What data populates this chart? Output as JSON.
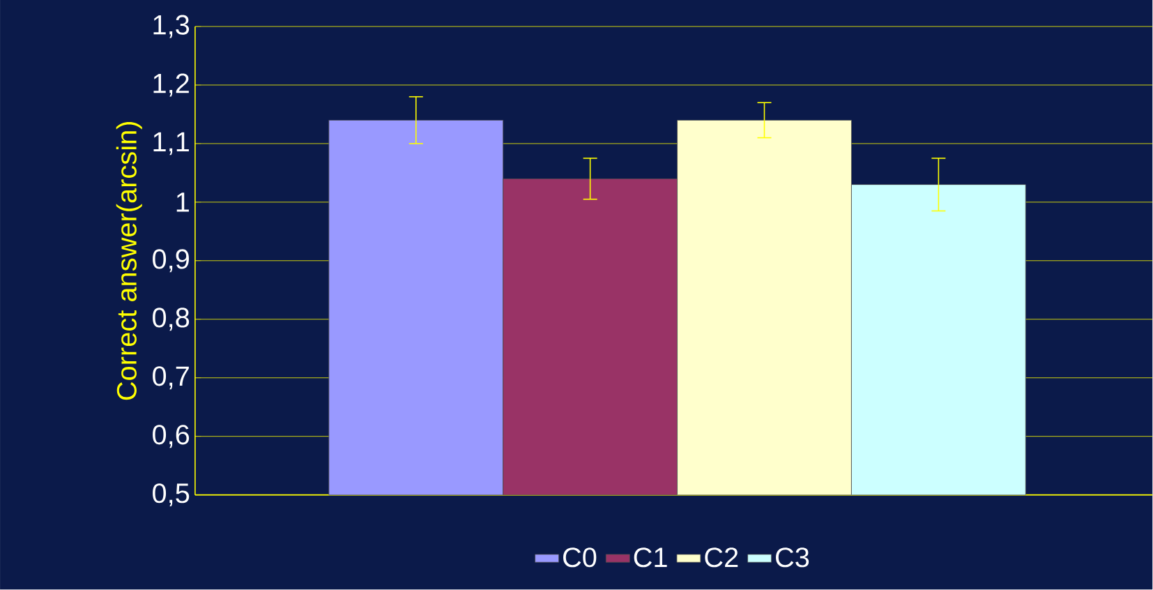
{
  "chart_data": {
    "type": "bar",
    "ylabel": "Correct answer(arcsin)",
    "categories": [
      null
    ],
    "series": [
      {
        "name": "C0",
        "color": "#9999ff",
        "values": [
          1.14
        ],
        "errors": [
          0.04
        ]
      },
      {
        "name": "C1",
        "color": "#993366",
        "values": [
          1.04
        ],
        "errors": [
          0.035
        ]
      },
      {
        "name": "C2",
        "color": "#ffffcc",
        "values": [
          1.14
        ],
        "errors": [
          0.03
        ]
      },
      {
        "name": "C3",
        "color": "#ccffff",
        "values": [
          1.03
        ],
        "errors": [
          0.045
        ]
      }
    ],
    "ylim": [
      0.5,
      1.3
    ],
    "yticks": [
      {
        "value": 0.5,
        "label": "0,5"
      },
      {
        "value": 0.6,
        "label": "0,6"
      },
      {
        "value": 0.7,
        "label": "0,7"
      },
      {
        "value": 0.8,
        "label": "0,8"
      },
      {
        "value": 0.9,
        "label": "0,9"
      },
      1,
      {
        "value": 1.1,
        "label": "1,1"
      },
      {
        "value": 1.2,
        "label": "1,2"
      },
      {
        "value": 1.3,
        "label": "1,3"
      }
    ],
    "grid": "y",
    "legend": "bottom"
  }
}
